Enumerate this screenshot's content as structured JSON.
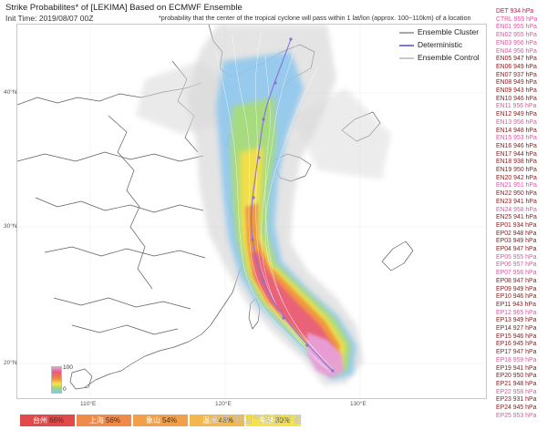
{
  "header": {
    "title": "Strike Probabilites* of [LEKIMA] Based on ECMWF Ensemble",
    "init_time": "Init Time: 2019/08/07 00Z",
    "note": "*probability that the center of the tropical cyclone will pass within 1 lat/lon (approx. 100~110km) of a location"
  },
  "legend": {
    "items": [
      {
        "label": "Ensemble Cluster",
        "style": "gray-line",
        "color": "#a8a8a8"
      },
      {
        "label": "Deterministic",
        "style": "purple-line-dots",
        "color": "#8a70d8"
      },
      {
        "label": "Ensemble Control",
        "style": "light-gray-line",
        "color": "#c8c8c8"
      }
    ]
  },
  "map": {
    "lat_labels": [
      "40°N",
      "30°N",
      "20°N"
    ],
    "lon_labels": [
      "110°E",
      "120°E",
      "130°E"
    ]
  },
  "colorbar": {
    "ticks": [
      "100",
      "0"
    ],
    "stops": [
      "#e8a0d8",
      "#e85a7a",
      "#f08a3a",
      "#f7e24a",
      "#9bd873",
      "#7fc8f0"
    ]
  },
  "members": [
    {
      "label": "DET 934 hPa",
      "color": "#c2185b"
    },
    {
      "label": "CTRL 955 hPa",
      "color": "#e056a0"
    },
    {
      "label": "EN01 955 hPa",
      "color": "#e056a0"
    },
    {
      "label": "EN02 955 hPa",
      "color": "#e056a0"
    },
    {
      "label": "EN03 956 hPa",
      "color": "#e056a0"
    },
    {
      "label": "EN04 956 hPa",
      "color": "#e056a0"
    },
    {
      "label": "EN05 947 hPa",
      "color": "#8b1a1a"
    },
    {
      "label": "EN06 949 hPa",
      "color": "#8b1a1a"
    },
    {
      "label": "EN07 937 hPa",
      "color": "#8b1a1a"
    },
    {
      "label": "EN08 949 hPa",
      "color": "#8b1a1a"
    },
    {
      "label": "EN09 943 hPa",
      "color": "#8b1a1a"
    },
    {
      "label": "EN10 946 hPa",
      "color": "#8b1a1a"
    },
    {
      "label": "EN11 956 hPa",
      "color": "#e056a0"
    },
    {
      "label": "EN12 949 hPa",
      "color": "#8b1a1a"
    },
    {
      "label": "EN13 956 hPa",
      "color": "#e056a0"
    },
    {
      "label": "EN14 948 hPa",
      "color": "#8b1a1a"
    },
    {
      "label": "EN15 953 hPa",
      "color": "#e056a0"
    },
    {
      "label": "EN16 946 hPa",
      "color": "#8b1a1a"
    },
    {
      "label": "EN17 944 hPa",
      "color": "#8b1a1a"
    },
    {
      "label": "EN18 938 hPa",
      "color": "#8b1a1a"
    },
    {
      "label": "EN19 950 hPa",
      "color": "#8b1a1a"
    },
    {
      "label": "EN20 942 hPa",
      "color": "#8b1a1a"
    },
    {
      "label": "EN21 951 hPa",
      "color": "#e056a0"
    },
    {
      "label": "EN22 950 hPa",
      "color": "#8b1a1a"
    },
    {
      "label": "EN23 941 hPa",
      "color": "#8b1a1a"
    },
    {
      "label": "EN24 958 hPa",
      "color": "#e056a0"
    },
    {
      "label": "EN25 941 hPa",
      "color": "#8b1a1a"
    },
    {
      "label": "EP01 934 hPa",
      "color": "#8b1a1a"
    },
    {
      "label": "EP02 948 hPa",
      "color": "#8b1a1a"
    },
    {
      "label": "EP03 949 hPa",
      "color": "#8b1a1a"
    },
    {
      "label": "EP04 947 hPa",
      "color": "#8b1a1a"
    },
    {
      "label": "EP05 955 hPa",
      "color": "#e056a0"
    },
    {
      "label": "EP06 957 hPa",
      "color": "#e056a0"
    },
    {
      "label": "EP07 956 hPa",
      "color": "#e056a0"
    },
    {
      "label": "EP08 947 hPa",
      "color": "#8b1a1a"
    },
    {
      "label": "EP09 949 hPa",
      "color": "#8b1a1a"
    },
    {
      "label": "EP10 946 hPa",
      "color": "#8b1a1a"
    },
    {
      "label": "EP11 943 hPa",
      "color": "#8b1a1a"
    },
    {
      "label": "EP12 965 hPa",
      "color": "#e056a0"
    },
    {
      "label": "EP13 949 hPa",
      "color": "#8b1a1a"
    },
    {
      "label": "EP14 927 hPa",
      "color": "#8b1a1a"
    },
    {
      "label": "EP15 946 hPa",
      "color": "#8b1a1a"
    },
    {
      "label": "EP16 945 hPa",
      "color": "#8b1a1a"
    },
    {
      "label": "EP17 947 hPa",
      "color": "#8b1a1a"
    },
    {
      "label": "EP18 959 hPa",
      "color": "#e056a0"
    },
    {
      "label": "EP19 941 hPa",
      "color": "#8b1a1a"
    },
    {
      "label": "EP20 950 hPa",
      "color": "#8b1a1a"
    },
    {
      "label": "EP21 948 hPa",
      "color": "#8b1a1a"
    },
    {
      "label": "EP22 958 hPa",
      "color": "#e056a0"
    },
    {
      "label": "EP23 931 hPa",
      "color": "#8b1a1a"
    },
    {
      "label": "EP24 945 hPa",
      "color": "#8b1a1a"
    },
    {
      "label": "EP25 953 hPa",
      "color": "#e056a0"
    }
  ],
  "cities": [
    {
      "name": "台州",
      "prob": "66%",
      "color": "#e24a4a"
    },
    {
      "name": "上海",
      "prob": "56%",
      "color": "#f08a4a"
    },
    {
      "name": "象山",
      "prob": "54%",
      "color": "#f0a04a"
    },
    {
      "name": "温州",
      "prob": "48%",
      "color": "#f2b84e"
    },
    {
      "name": "福建",
      "prob": "30%",
      "color": "#f7e24a"
    }
  ],
  "watermark": "微博 中国气象爱好者"
}
